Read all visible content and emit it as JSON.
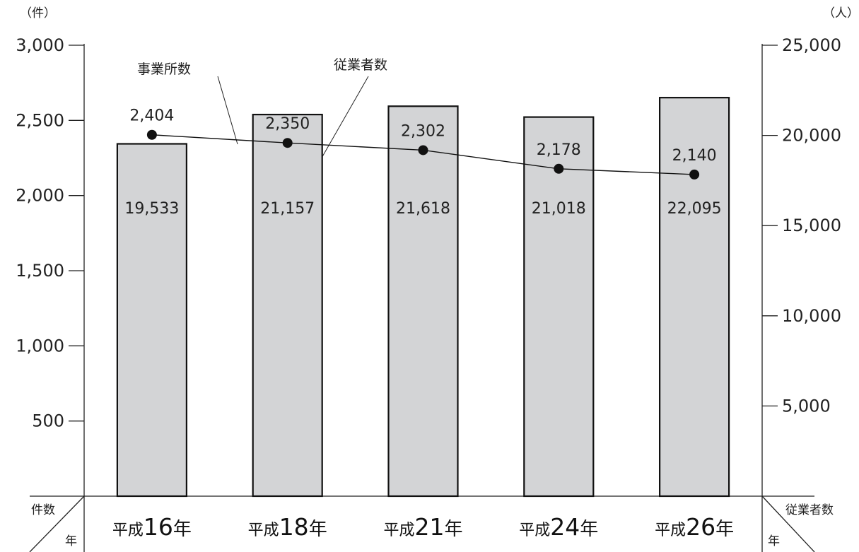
{
  "chart_data": {
    "type": "bar+line",
    "categories": [
      {
        "prefix": "平成",
        "num": "16",
        "suffix": "年"
      },
      {
        "prefix": "平成",
        "num": "18",
        "suffix": "年"
      },
      {
        "prefix": "平成",
        "num": "21",
        "suffix": "年"
      },
      {
        "prefix": "平成",
        "num": "24",
        "suffix": "年"
      },
      {
        "prefix": "平成",
        "num": "26",
        "suffix": "年"
      }
    ],
    "series": [
      {
        "name": "従業者数",
        "type": "bar",
        "axis": "right",
        "values": [
          19533,
          21157,
          21618,
          21018,
          22095
        ],
        "labels": [
          "19,533",
          "21,157",
          "21,618",
          "21,018",
          "22,095"
        ],
        "color": "#d3d4d6"
      },
      {
        "name": "事業所数",
        "type": "line",
        "axis": "left",
        "values": [
          2404,
          2350,
          2302,
          2178,
          2140
        ],
        "labels": [
          "2,404",
          "2,350",
          "2,302",
          "2,178",
          "2,140"
        ],
        "color": "#111111"
      }
    ],
    "left_axis": {
      "unit": "（件）",
      "range": [
        0,
        3000
      ],
      "ticks": [
        {
          "value": 500,
          "label": "500"
        },
        {
          "value": 1000,
          "label": "1,000"
        },
        {
          "value": 1500,
          "label": "1,500"
        },
        {
          "value": 2000,
          "label": "2,000"
        },
        {
          "value": 2500,
          "label": "2,500"
        },
        {
          "value": 3000,
          "label": "3,000"
        }
      ]
    },
    "right_axis": {
      "unit": "（人）",
      "range": [
        0,
        25000
      ],
      "ticks": [
        {
          "value": 5000,
          "label": "5,000"
        },
        {
          "value": 10000,
          "label": "10,000"
        },
        {
          "value": 15000,
          "label": "15,000"
        },
        {
          "value": 20000,
          "label": "20,000"
        },
        {
          "value": 25000,
          "label": "25,000"
        }
      ]
    },
    "corner_left": {
      "top": "件数",
      "bottom": "年"
    },
    "corner_right": {
      "top": "従業者数",
      "bottom": "年"
    },
    "grid": false
  }
}
